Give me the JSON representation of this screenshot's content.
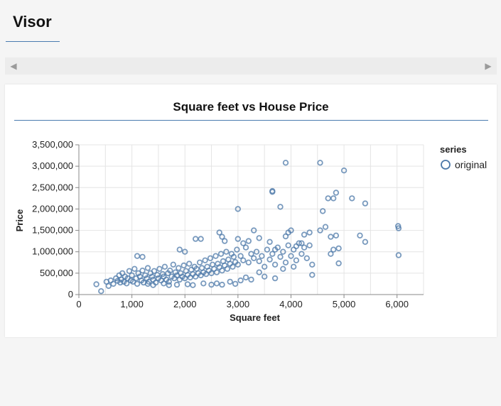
{
  "app": {
    "title": "Visor"
  },
  "colors": {
    "accent": "#4a7bb0",
    "point": "#4c78a8"
  },
  "tabs": {
    "left_icon": "chevron-left-icon",
    "right_icon": "chevron-right-icon"
  },
  "chart_data": {
    "type": "scatter",
    "title": "Square feet vs House Price",
    "xlabel": "Square feet",
    "ylabel": "Price",
    "xlim": [
      0,
      6500
    ],
    "ylim": [
      0,
      3500000
    ],
    "x_ticks": [
      "0",
      "1,000",
      "2,000",
      "3,000",
      "4,000",
      "5,000",
      "6,000"
    ],
    "x_tick_values": [
      0,
      1000,
      2000,
      3000,
      4000,
      5000,
      6000
    ],
    "y_ticks": [
      "0",
      "500,000",
      "1,000,000",
      "1,500,000",
      "2,000,000",
      "2,500,000",
      "3,000,000",
      "3,500,000"
    ],
    "y_tick_values": [
      0,
      500000,
      1000000,
      1500000,
      2000000,
      2500000,
      3000000,
      3500000
    ],
    "grid": true,
    "legend": {
      "title": "series",
      "position": "right",
      "entries": [
        "original"
      ]
    },
    "series": [
      {
        "name": "original",
        "points": [
          [
            330,
            240000
          ],
          [
            420,
            80000
          ],
          [
            520,
            300000
          ],
          [
            560,
            200000
          ],
          [
            600,
            330000
          ],
          [
            650,
            250000
          ],
          [
            700,
            380000
          ],
          [
            730,
            320000
          ],
          [
            760,
            450000
          ],
          [
            780,
            280000
          ],
          [
            800,
            350000
          ],
          [
            820,
            500000
          ],
          [
            850,
            300000
          ],
          [
            870,
            420000
          ],
          [
            900,
            260000
          ],
          [
            920,
            380000
          ],
          [
            950,
            550000
          ],
          [
            980,
            330000
          ],
          [
            1000,
            450000
          ],
          [
            1020,
            300000
          ],
          [
            1050,
            600000
          ],
          [
            1080,
            380000
          ],
          [
            1100,
            250000
          ],
          [
            1120,
            500000
          ],
          [
            1150,
            420000
          ],
          [
            1180,
            330000
          ],
          [
            1200,
            560000
          ],
          [
            1220,
            280000
          ],
          [
            1250,
            450000
          ],
          [
            1280,
            380000
          ],
          [
            1300,
            620000
          ],
          [
            1320,
            300000
          ],
          [
            1350,
            500000
          ],
          [
            1380,
            420000
          ],
          [
            1400,
            350000
          ],
          [
            1420,
            550000
          ],
          [
            1450,
            280000
          ],
          [
            1480,
            460000
          ],
          [
            1500,
            380000
          ],
          [
            1520,
            600000
          ],
          [
            1550,
            330000
          ],
          [
            1580,
            480000
          ],
          [
            1600,
            420000
          ],
          [
            1620,
            650000
          ],
          [
            1650,
            350000
          ],
          [
            1680,
            500000
          ],
          [
            1700,
            300000
          ],
          [
            1720,
            560000
          ],
          [
            1750,
            420000
          ],
          [
            1780,
            700000
          ],
          [
            1800,
            380000
          ],
          [
            1820,
            520000
          ],
          [
            1850,
            450000
          ],
          [
            1880,
            620000
          ],
          [
            1900,
            350000
          ],
          [
            1920,
            500000
          ],
          [
            1950,
            420000
          ],
          [
            1980,
            680000
          ],
          [
            2000,
            380000
          ],
          [
            2020,
            550000
          ],
          [
            2050,
            460000
          ],
          [
            2080,
            720000
          ],
          [
            2100,
            400000
          ],
          [
            2120,
            580000
          ],
          [
            2150,
            480000
          ],
          [
            2180,
            650000
          ],
          [
            2200,
            420000
          ],
          [
            2220,
            600000
          ],
          [
            2250,
            500000
          ],
          [
            2280,
            750000
          ],
          [
            2300,
            450000
          ],
          [
            2320,
            620000
          ],
          [
            2350,
            520000
          ],
          [
            2380,
            800000
          ],
          [
            2400,
            480000
          ],
          [
            2420,
            650000
          ],
          [
            2450,
            560000
          ],
          [
            2480,
            850000
          ],
          [
            2500,
            500000
          ],
          [
            2520,
            700000
          ],
          [
            2550,
            600000
          ],
          [
            2580,
            900000
          ],
          [
            2600,
            520000
          ],
          [
            2620,
            720000
          ],
          [
            2650,
            640000
          ],
          [
            2680,
            950000
          ],
          [
            2700,
            560000
          ],
          [
            2720,
            780000
          ],
          [
            2750,
            680000
          ],
          [
            2780,
            1000000
          ],
          [
            2800,
            600000
          ],
          [
            2820,
            820000
          ],
          [
            2850,
            720000
          ],
          [
            2880,
            950000
          ],
          [
            2900,
            650000
          ],
          [
            2920,
            880000
          ],
          [
            2950,
            760000
          ],
          [
            2980,
            1050000
          ],
          [
            3000,
            700000
          ],
          [
            3050,
            900000
          ],
          [
            3100,
            800000
          ],
          [
            3150,
            1100000
          ],
          [
            3200,
            750000
          ],
          [
            3250,
            950000
          ],
          [
            3300,
            850000
          ],
          [
            3350,
            1000000
          ],
          [
            3400,
            780000
          ],
          [
            3450,
            900000
          ],
          [
            3500,
            650000
          ],
          [
            3550,
            1050000
          ],
          [
            3600,
            820000
          ],
          [
            3650,
            950000
          ],
          [
            3700,
            700000
          ],
          [
            3750,
            1100000
          ],
          [
            3800,
            880000
          ],
          [
            3850,
            1000000
          ],
          [
            3900,
            750000
          ],
          [
            3950,
            1150000
          ],
          [
            4000,
            900000
          ],
          [
            4050,
            1050000
          ],
          [
            4100,
            800000
          ],
          [
            4150,
            1200000
          ],
          [
            4200,
            950000
          ],
          [
            4250,
            1100000
          ],
          [
            4300,
            850000
          ],
          [
            4350,
            1150000
          ],
          [
            4400,
            700000
          ],
          [
            4400,
            460000
          ],
          [
            1100,
            900000
          ],
          [
            1200,
            880000
          ],
          [
            1900,
            1050000
          ],
          [
            2000,
            1000000
          ],
          [
            2200,
            1300000
          ],
          [
            2300,
            1300000
          ],
          [
            2650,
            1450000
          ],
          [
            2700,
            1350000
          ],
          [
            2750,
            1250000
          ],
          [
            3000,
            1300000
          ],
          [
            3100,
            1200000
          ],
          [
            3200,
            1250000
          ],
          [
            3300,
            1500000
          ],
          [
            3400,
            1320000
          ],
          [
            3600,
            1230000
          ],
          [
            3700,
            1050000
          ],
          [
            3900,
            1360000
          ],
          [
            3950,
            1450000
          ],
          [
            4000,
            1500000
          ],
          [
            4100,
            1130000
          ],
          [
            4200,
            1200000
          ],
          [
            4250,
            1400000
          ],
          [
            4350,
            1450000
          ],
          [
            4550,
            1500000
          ],
          [
            4650,
            1580000
          ],
          [
            4750,
            950000
          ],
          [
            4800,
            1050000
          ],
          [
            4850,
            1380000
          ],
          [
            4900,
            1080000
          ],
          [
            4900,
            730000
          ],
          [
            4750,
            1350000
          ],
          [
            5300,
            1380000
          ],
          [
            5400,
            1230000
          ],
          [
            6020,
            1600000
          ],
          [
            6030,
            1550000
          ],
          [
            6030,
            920000
          ],
          [
            3000,
            2000000
          ],
          [
            3650,
            2400000
          ],
          [
            3650,
            2420000
          ],
          [
            3800,
            2050000
          ],
          [
            3900,
            3080000
          ],
          [
            4550,
            3080000
          ],
          [
            4600,
            1950000
          ],
          [
            4700,
            2250000
          ],
          [
            4800,
            2250000
          ],
          [
            4850,
            2380000
          ],
          [
            5000,
            2900000
          ],
          [
            5150,
            2250000
          ],
          [
            5400,
            2130000
          ],
          [
            1300,
            250000
          ],
          [
            1400,
            220000
          ],
          [
            1600,
            260000
          ],
          [
            1700,
            220000
          ],
          [
            1850,
            230000
          ],
          [
            2050,
            240000
          ],
          [
            2150,
            220000
          ],
          [
            2350,
            260000
          ],
          [
            2500,
            230000
          ],
          [
            2600,
            260000
          ],
          [
            2700,
            230000
          ],
          [
            2850,
            300000
          ],
          [
            2950,
            250000
          ],
          [
            3050,
            330000
          ],
          [
            3150,
            400000
          ],
          [
            3250,
            350000
          ],
          [
            3400,
            520000
          ],
          [
            3500,
            420000
          ],
          [
            3700,
            380000
          ],
          [
            3850,
            600000
          ],
          [
            4050,
            650000
          ]
        ]
      }
    ]
  }
}
